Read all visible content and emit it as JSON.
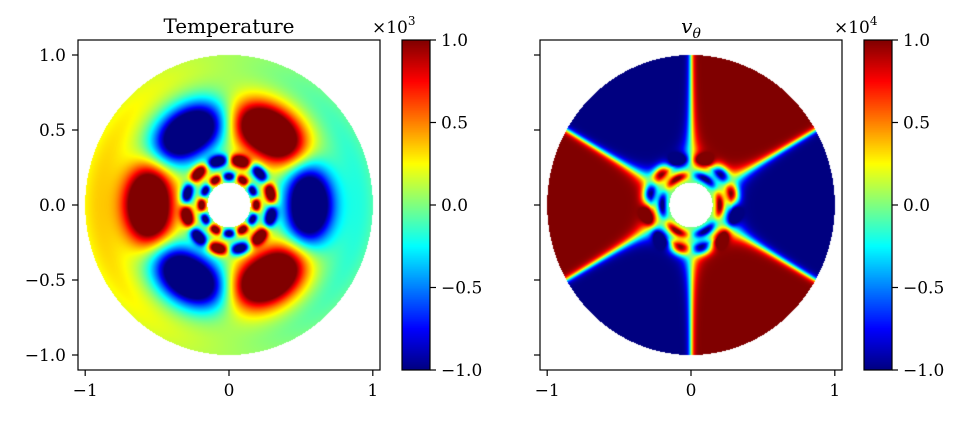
{
  "chart_data": [
    {
      "type": "heatmap",
      "title": "Temperature",
      "multiplier": {
        "base": "×10",
        "exp": "3"
      },
      "xlim": [
        -1.05,
        1.05
      ],
      "ylim": [
        -1.1,
        1.1
      ],
      "xticks": [
        {
          "v": -1,
          "label": "−1"
        },
        {
          "v": 0,
          "label": "0"
        },
        {
          "v": 1,
          "label": "1"
        }
      ],
      "yticks": [
        {
          "v": 1.0,
          "label": "1.0"
        },
        {
          "v": 0.5,
          "label": "0.5"
        },
        {
          "v": 0.0,
          "label": "0.0"
        },
        {
          "v": -0.5,
          "label": "−0.5"
        },
        {
          "v": -1.0,
          "label": "−1.0"
        }
      ],
      "colorbar": {
        "range": [
          -1.0,
          1.0
        ],
        "colormap": "jet",
        "ticks": [
          {
            "v": 1.0,
            "label": "1.0"
          },
          {
            "v": 0.5,
            "label": "0.5"
          },
          {
            "v": 0.0,
            "label": "0.0"
          },
          {
            "v": -0.5,
            "label": "−0.5"
          },
          {
            "v": -1.0,
            "label": "−1.0"
          }
        ]
      },
      "domain": {
        "shape": "annulus",
        "inner_radius": 0.15,
        "outer_radius": 1.0
      }
    },
    {
      "type": "heatmap",
      "title": "vθ",
      "title_main": "v",
      "title_sub": "θ",
      "multiplier": {
        "base": "×10",
        "exp": "4"
      },
      "xlim": [
        -1.05,
        1.05
      ],
      "ylim": [
        -1.1,
        1.1
      ],
      "xticks": [
        {
          "v": -1,
          "label": "−1"
        },
        {
          "v": 0,
          "label": "0"
        },
        {
          "v": 1,
          "label": "1"
        }
      ],
      "yticks": [
        {
          "v": 1.0,
          "label": ""
        },
        {
          "v": 0.5,
          "label": ""
        },
        {
          "v": 0.0,
          "label": ""
        },
        {
          "v": -0.5,
          "label": ""
        },
        {
          "v": -1.0,
          "label": ""
        }
      ],
      "colorbar": {
        "range": [
          -1.0,
          1.0
        ],
        "colormap": "jet",
        "ticks": [
          {
            "v": 1.0,
            "label": "1.0"
          },
          {
            "v": 0.5,
            "label": "0.5"
          },
          {
            "v": 0.0,
            "label": "0.0"
          },
          {
            "v": -0.5,
            "label": "−0.5"
          },
          {
            "v": -1.0,
            "label": "−1.0"
          }
        ]
      },
      "domain": {
        "shape": "annulus",
        "inner_radius": 0.15,
        "outer_radius": 1.0
      }
    }
  ],
  "colors": {
    "jet": [
      "#00007f",
      "#0000ff",
      "#007fff",
      "#00ffff",
      "#7fff7f",
      "#ffff00",
      "#ff7f00",
      "#ff0000",
      "#7f0000"
    ],
    "axis": "#000000",
    "background": "#ffffff"
  }
}
